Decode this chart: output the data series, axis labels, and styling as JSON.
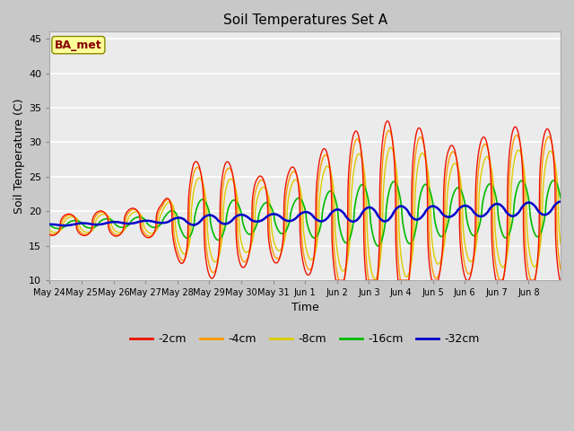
{
  "title": "Soil Temperatures Set A",
  "xlabel": "Time",
  "ylabel": "Soil Temperature (C)",
  "ylim": [
    10,
    46
  ],
  "annotation": "BA_met",
  "fig_bg_color": "#c8c8c8",
  "plot_bg_color": "#ebebeb",
  "colors": {
    "-2cm": "#ee1100",
    "-4cm": "#ff9900",
    "-8cm": "#ddcc00",
    "-16cm": "#00bb00",
    "-32cm": "#0000cc"
  },
  "tick_labels": [
    "May 24",
    "May 25",
    "May 26",
    "May 27",
    "May 28",
    "May 29",
    "May 30",
    "May 31",
    "Jun 1",
    "Jun 2",
    "Jun 3",
    "Jun 4",
    "Jun 5",
    "Jun 6",
    "Jun 7",
    "Jun 8"
  ],
  "yticks": [
    10,
    15,
    20,
    25,
    30,
    35,
    40,
    45
  ],
  "n_days": 16
}
